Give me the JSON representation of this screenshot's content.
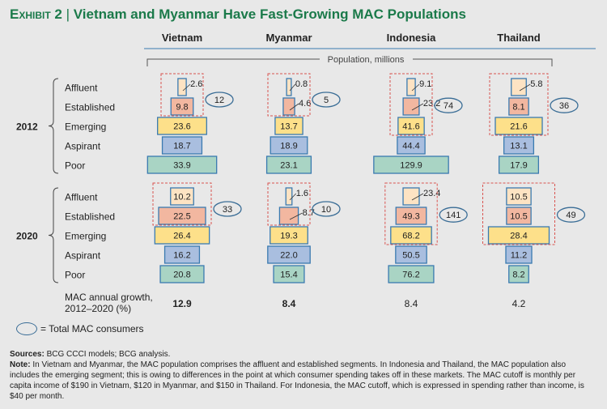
{
  "title": {
    "exhibit": "Exhibit 2",
    "separator": "|",
    "text": "Vietnam and Myanmar Have Fast-Growing MAC Populations"
  },
  "chart_data": {
    "type": "bar",
    "subtype": "population pyramid",
    "unit_label": "Population, millions",
    "countries": [
      "Vietnam",
      "Myanmar",
      "Indonesia",
      "Thailand"
    ],
    "segments": [
      "Affluent",
      "Established",
      "Emerging",
      "Aspirant",
      "Poor"
    ],
    "segment_colors": [
      "#fde3c3",
      "#f2b7a0",
      "#fde08a",
      "#a9bedf",
      "#a9d4c4"
    ],
    "years": [
      {
        "year": "2012",
        "values": {
          "Vietnam": [
            2.6,
            9.8,
            23.6,
            18.7,
            33.9
          ],
          "Myanmar": [
            0.8,
            4.6,
            13.7,
            18.9,
            23.1
          ],
          "Indonesia": [
            9.1,
            23.2,
            41.6,
            44.4,
            129.9
          ],
          "Thailand": [
            5.8,
            8.1,
            21.6,
            13.1,
            17.9
          ]
        },
        "mac_totals": {
          "Vietnam": "12",
          "Myanmar": "5",
          "Indonesia": "74",
          "Thailand": "36"
        }
      },
      {
        "year": "2020",
        "values": {
          "Vietnam": [
            10.2,
            22.5,
            26.4,
            16.2,
            20.8
          ],
          "Myanmar": [
            1.6,
            8.7,
            19.3,
            22.0,
            15.4
          ],
          "Indonesia": [
            23.4,
            49.3,
            68.2,
            50.5,
            76.2
          ],
          "Thailand": [
            10.5,
            10.5,
            28.4,
            11.2,
            8.2
          ]
        },
        "mac_totals": {
          "Vietnam": "33",
          "Myanmar": "10",
          "Indonesia": "141",
          "Thailand": "49"
        }
      }
    ],
    "mac_segments_count": {
      "Vietnam": 2,
      "Myanmar": 2,
      "Indonesia": 3,
      "Thailand": 3
    },
    "growth_label": [
      "MAC annual growth,",
      "2012–2020 (%)"
    ],
    "growth": {
      "Vietnam": "12.9",
      "Myanmar": "8.4",
      "Indonesia": "8.4",
      "Thailand": "4.2"
    },
    "growth_bold": {
      "Vietnam": true,
      "Myanmar": true,
      "Indonesia": false,
      "Thailand": false
    }
  },
  "legend": {
    "text": "= Total MAC consumers"
  },
  "notes": {
    "sources_label": "Sources:",
    "sources": "BCG CCCI models; BCG analysis.",
    "note_label": "Note:",
    "note": "In Vietnam and Myanmar, the MAC population comprises the affluent and established segments. In Indonesia and Thailand, the MAC population also includes the emerging segment; this is owing to differences in the point at which consumer spending takes off in these markets. The MAC cutoff is monthly per capita income of $190 in Vietnam, $120 in Myanmar, and $150 in Thailand. For Indonesia, the MAC cutoff, which is expressed in spending rather than income, is $40 per month."
  }
}
